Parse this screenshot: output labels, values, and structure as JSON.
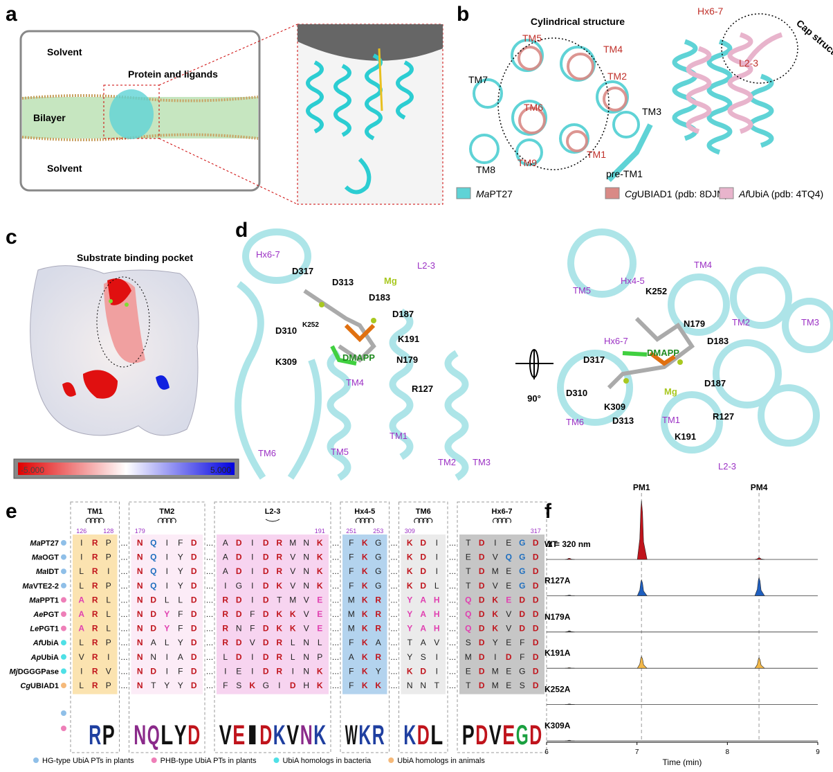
{
  "panel_labels": [
    "a",
    "b",
    "c",
    "d",
    "e",
    "f"
  ],
  "panel_a": {
    "labels": [
      "Solvent",
      "Protein and ligands",
      "Bilayer",
      "Solvent"
    ]
  },
  "panel_b": {
    "title": "Cylindrical structure",
    "left_labels": [
      "TM5",
      "TM4",
      "TM7",
      "TM2",
      "TM6",
      "TM3",
      "TM8",
      "TM9",
      "TM1",
      "pre-TM1"
    ],
    "right_labels": [
      "Hx6-7",
      "Cap structure",
      "L2-3"
    ],
    "legend": [
      {
        "name": "MaPT27",
        "color": "#5fd3d6"
      },
      {
        "name": "CgUBIAD1 (pdb: 8DJM)",
        "color": "#d98a86"
      },
      {
        "name": "AfUbiA (pdb: 4TQ4)",
        "color": "#e8b4cc"
      }
    ]
  },
  "panel_c": {
    "title": "Substrate binding pocket",
    "colorbar": [
      "-5.000",
      "5.000"
    ]
  },
  "panel_d": {
    "left_labels": [
      "Hx6-7",
      "L2-3",
      "D317",
      "D313",
      "Mg",
      "D183",
      "D187",
      "K252",
      "D310",
      "K191",
      "K309",
      "DMAPP",
      "N179",
      "R127",
      "TM4",
      "TM1",
      "TM6",
      "TM5",
      "TM2",
      "TM3"
    ],
    "rotation": "90°",
    "right_labels": [
      "TM4",
      "Hx4-5",
      "TM5",
      "K252",
      "TM2",
      "TM3",
      "N179",
      "D183",
      "Hx6-7",
      "DMAPP",
      "D317",
      "D187",
      "D310",
      "Mg",
      "K309",
      "D313",
      "TM1",
      "R127",
      "TM6",
      "K191",
      "L2-3"
    ]
  },
  "panel_e": {
    "groups": [
      {
        "name": "TM1",
        "numbers": [
          "126",
          "128"
        ],
        "color": "#fbe3b0"
      },
      {
        "name": "TM2",
        "numbers": [
          "179"
        ],
        "color": "#fcecf7"
      },
      {
        "name": "L2-3",
        "numbers": [
          "191"
        ],
        "color": "#f7d4f0"
      },
      {
        "name": "Hx4-5",
        "numbers": [
          "251",
          "253"
        ],
        "color": "#b3d3ee"
      },
      {
        "name": "TM6",
        "numbers": [
          "309"
        ],
        "color": "#ebebeb"
      },
      {
        "name": "Hx6-7",
        "numbers": [
          "317"
        ],
        "color": "#c6c6c6"
      }
    ],
    "rows": [
      {
        "name": "MaPT27",
        "group": 0,
        "seq": [
          "IRP",
          "NQIFD",
          "ADIDRMNK",
          "FKG",
          "KDI",
          "TDIEGD"
        ]
      },
      {
        "name": "MaOGT",
        "group": 0,
        "seq": [
          "IRP",
          "NQIYD",
          "ADIDRVNK",
          "FKG",
          "KDI",
          "EDVQGD"
        ]
      },
      {
        "name": "MaIDT",
        "group": 0,
        "seq": [
          "LRI",
          "NQIYD",
          "ADIDRVNK",
          "FKG",
          "KDI",
          "TDMEGD"
        ]
      },
      {
        "name": "MaVTE2-2",
        "group": 0,
        "seq": [
          "LRP",
          "NQIYD",
          "IGIDKVNK",
          "FKG",
          "KDL",
          "TDVEGD"
        ]
      },
      {
        "name": "MaPPT1",
        "group": 1,
        "seq": [
          "ARL",
          "NDLLD",
          "RDIDTMVE",
          "MKR",
          "YAH",
          "QDKEDD"
        ]
      },
      {
        "name": "AePGT",
        "group": 1,
        "seq": [
          "ARL",
          "NDYFD",
          "RDFDKKVE",
          "MKR",
          "YAH",
          "QDKVDD"
        ]
      },
      {
        "name": "LePGT1",
        "group": 1,
        "seq": [
          "ARL",
          "NDYFD",
          "RNFDKKVE",
          "MKR",
          "YAH",
          "QDKVDD"
        ]
      },
      {
        "name": "AfUbiA",
        "group": 2,
        "seq": [
          "LRP",
          "NALYD",
          "RDVDRLNL",
          "FKA",
          "TAV",
          "SDYEFD"
        ]
      },
      {
        "name": "ApUbiA",
        "group": 2,
        "seq": [
          "VRI",
          "NNIAD",
          "LDIDRLNP",
          "AKR",
          "YSI",
          "MDIDFD"
        ]
      },
      {
        "name": "MjDGGGPase",
        "group": 2,
        "seq": [
          "IRV",
          "NDIFD",
          "IEIDRINK",
          "FKY",
          "KDI",
          "EDMEGD"
        ]
      },
      {
        "name": "CgUBIAD1",
        "group": 3,
        "seq": [
          "LRP",
          "NTYYD",
          "FSKGIDHK",
          "FKK",
          "NNT",
          "TDMESD"
        ]
      }
    ],
    "logo": [
      null,
      "R",
      "P",
      "N",
      "Q",
      "L",
      "Y",
      "D",
      "V",
      "E",
      "I",
      "D",
      "K",
      "V",
      "N",
      "K",
      "W",
      "K",
      "R",
      "K",
      "D",
      "L",
      "P",
      "D",
      "V",
      "E",
      "G",
      "D"
    ],
    "legend": [
      {
        "name": "HG-type UbiA PTs in plants",
        "color": "#8fbfe8"
      },
      {
        "name": "PHB-type UbiA PTs in plants",
        "color": "#ee7fb8"
      },
      {
        "name": "UbiA homologs in bacteria",
        "color": "#4fe0e6"
      },
      {
        "name": "UbiA homologs in animals",
        "color": "#f5b97a"
      }
    ]
  },
  "chart_data": {
    "type": "chromatogram",
    "annotation": "λ = 320 nm",
    "xlabel": "Time (min)",
    "xlim": [
      6,
      9
    ],
    "xticks": [
      6,
      7,
      8,
      9
    ],
    "markers": [
      {
        "label": "PM1",
        "x": 7.05
      },
      {
        "label": "PM4",
        "x": 8.35
      }
    ],
    "series": [
      {
        "name": "WT",
        "color": "#c0141c",
        "peaks": [
          {
            "x": 6.25,
            "height": 2
          },
          {
            "x": 7.05,
            "height": 100
          },
          {
            "x": 8.35,
            "height": 3
          }
        ]
      },
      {
        "name": "R127A",
        "color": "#1f5fbf",
        "peaks": [
          {
            "x": 6.25,
            "height": 1
          },
          {
            "x": 7.05,
            "height": 27
          },
          {
            "x": 8.35,
            "height": 31
          }
        ]
      },
      {
        "name": "N179A",
        "color": "#555555",
        "peaks": [
          {
            "x": 6.25,
            "height": 2
          }
        ]
      },
      {
        "name": "K191A",
        "color": "#f2b84a",
        "peaks": [
          {
            "x": 6.25,
            "height": 1
          },
          {
            "x": 7.05,
            "height": 20
          },
          {
            "x": 8.35,
            "height": 18
          }
        ]
      },
      {
        "name": "K252A",
        "color": "#555555",
        "peaks": [
          {
            "x": 6.25,
            "height": 1
          }
        ]
      },
      {
        "name": "K309A",
        "color": "#555555",
        "peaks": [
          {
            "x": 6.25,
            "height": 1
          }
        ]
      }
    ]
  }
}
